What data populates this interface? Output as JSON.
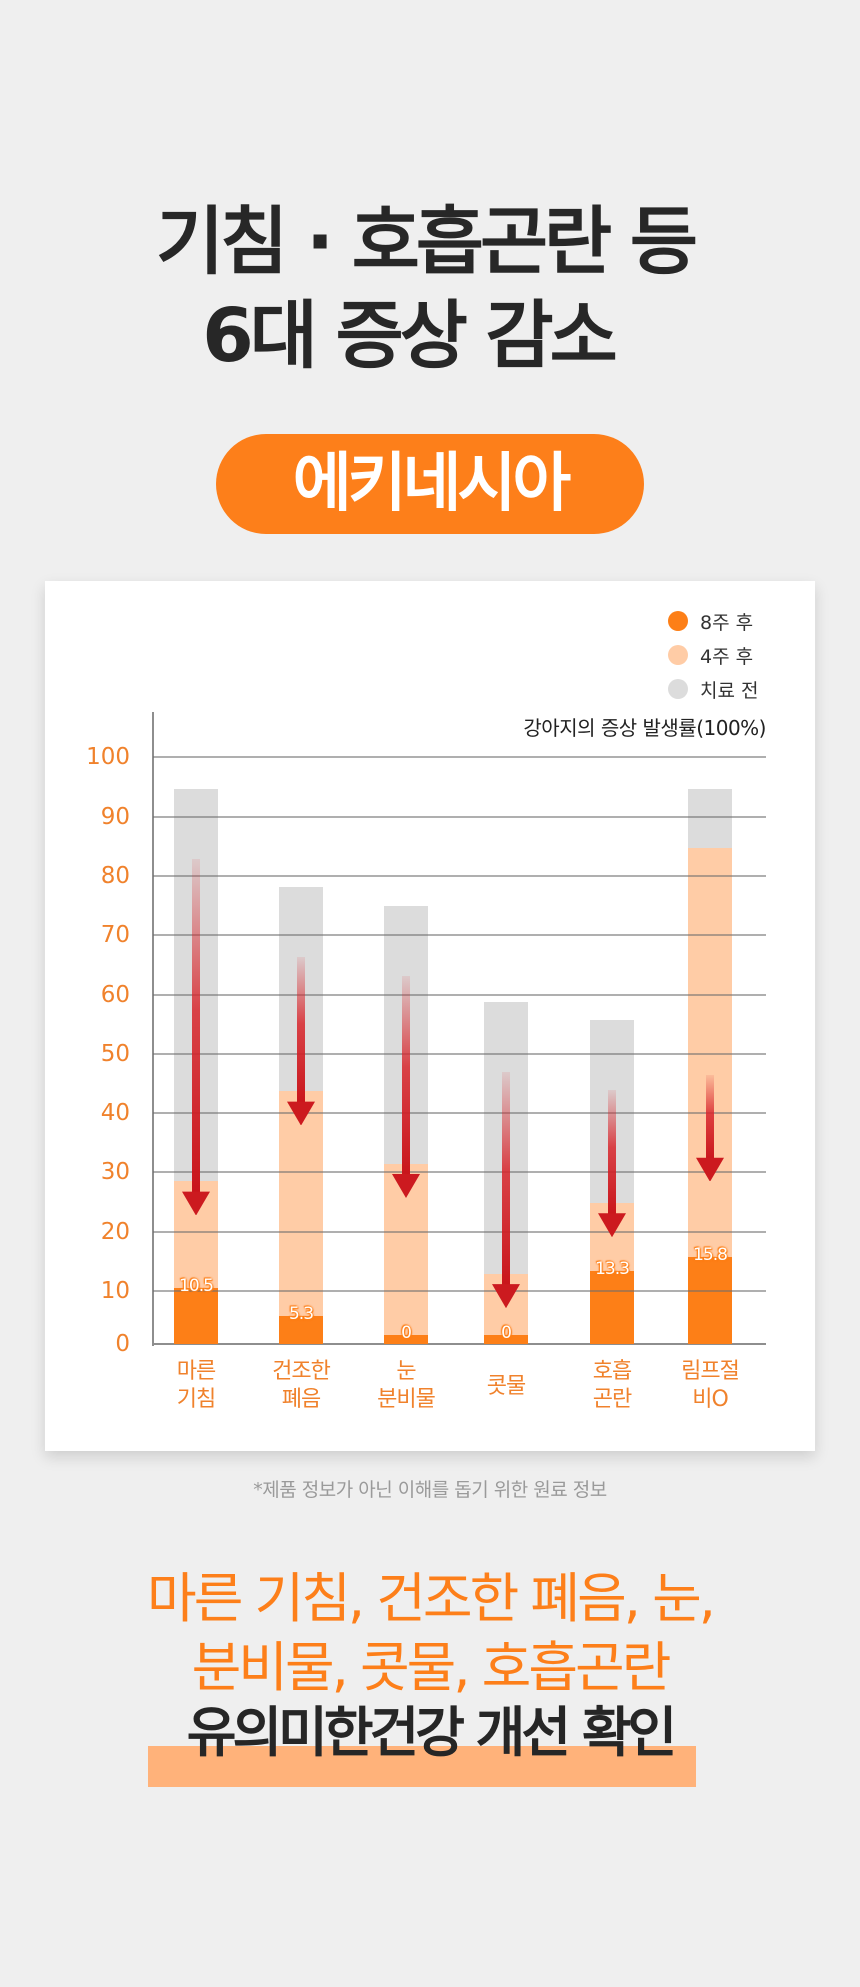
{
  "header": {
    "line1": "기침 · 호흡곤란 등",
    "line2": "6대 증상 감소"
  },
  "product_pill": {
    "label": "에키네시아",
    "color": "#fd7f1a"
  },
  "legend": [
    {
      "label": "8주 후",
      "color": "#fd7f17"
    },
    {
      "label": "4주 후",
      "color": "#ffcca6"
    },
    {
      "label": "치료 전",
      "color": "#dcdcdc"
    }
  ],
  "chart_title": "강아지의 증상 발생률(100%)",
  "footnote": "*제품 정보가 아닌 이해를 돕기 위한 원료 정보",
  "summary": {
    "line1": "마른 기침, 건조한 폐음, 눈,",
    "line2": "분비물, 콧물, 호흡곤란",
    "line3": "유의미한건강 개선 확인",
    "highlight_color": "#ffb27a"
  },
  "chart_data": {
    "type": "bar",
    "subtype": "overlapping",
    "title": "강아지의 증상 발생률(100%)",
    "xlabel": "",
    "ylabel": "",
    "ylim": [
      0,
      100
    ],
    "yticks": [
      0,
      10,
      20,
      30,
      40,
      50,
      60,
      70,
      80,
      90,
      100
    ],
    "grid": true,
    "legend_position": "top-right",
    "categories": [
      "마른 기침",
      "건조한 폐음",
      "눈 분비물",
      "콧물",
      "호흡 곤란",
      "림프절 비O"
    ],
    "category_lines": [
      [
        "마른",
        "기침"
      ],
      [
        "건조한",
        "폐음"
      ],
      [
        "눈",
        "분비물"
      ],
      [
        "콧물"
      ],
      [
        "호흡",
        "곤란"
      ],
      [
        "림프절",
        "비O"
      ]
    ],
    "series": [
      {
        "name": "치료 전",
        "color": "#dcdcdc",
        "values": [
          94.7,
          78.2,
          75.0,
          58.8,
          55.7,
          94.7
        ]
      },
      {
        "name": "4주 후",
        "color": "#ffcca6",
        "values": [
          28.5,
          43.7,
          31.5,
          12.9,
          24.8,
          84.7
        ]
      },
      {
        "name": "8주 후",
        "color": "#fd7f17",
        "values": [
          10.5,
          5.3,
          0,
          0,
          13.3,
          15.8
        ]
      }
    ],
    "data_labels": [
      "10.5",
      "5.3",
      "0",
      "0",
      "13.3",
      "15.8"
    ],
    "annotations": "red downward arrows on each bar indicating symptom reduction"
  }
}
